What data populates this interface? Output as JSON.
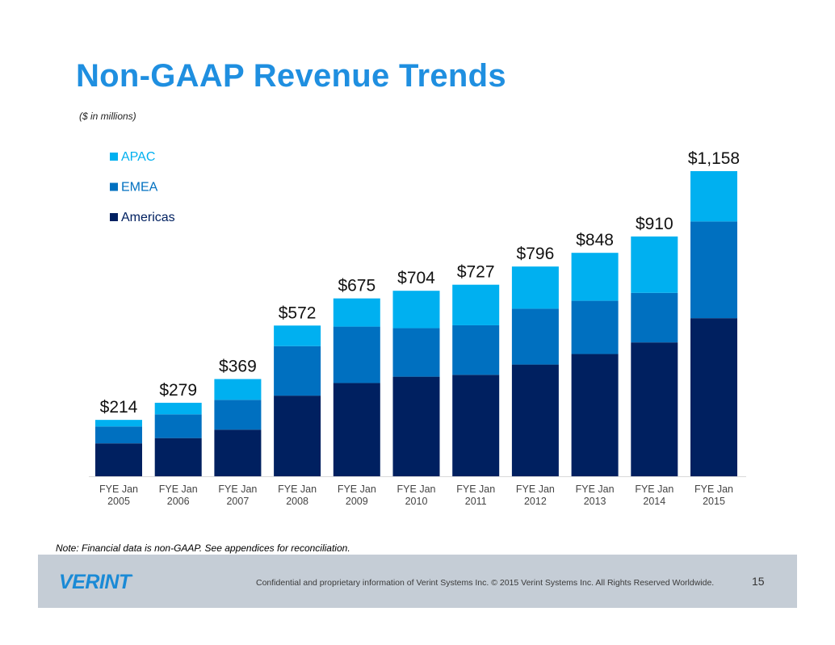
{
  "slide": {
    "title": "Non-GAAP Revenue Trends",
    "subtitle": "($ in millions)",
    "note": "Note: Financial data is non-GAAP.  See appendices for reconciliation.",
    "footer_text": "Confidential and proprietary information of Verint Systems Inc. © 2015 Verint Systems Inc. All Rights Reserved Worldwide.",
    "page_number": "15",
    "logo_text": "VERINT",
    "logo_mark": "."
  },
  "colors": {
    "title": "#1f8fe0",
    "logo": "#1a8ad6",
    "APAC": "#00b0f0",
    "EMEA": "#0070c0",
    "Americas": "#002060"
  },
  "chart_data": {
    "type": "bar",
    "stacked": true,
    "categories": [
      [
        "FYE Jan",
        "2005"
      ],
      [
        "FYE Jan",
        "2006"
      ],
      [
        "FYE Jan",
        "2007"
      ],
      [
        "FYE Jan",
        "2008"
      ],
      [
        "FYE Jan",
        "2009"
      ],
      [
        "FYE Jan",
        "2010"
      ],
      [
        "FYE Jan",
        "2011"
      ],
      [
        "FYE Jan",
        "2012"
      ],
      [
        "FYE Jan",
        "2013"
      ],
      [
        "FYE Jan",
        "2014"
      ],
      [
        "FYE Jan",
        "2015"
      ]
    ],
    "series": [
      {
        "name": "Americas",
        "values": [
          125,
          145,
          177,
          306,
          354,
          378,
          385,
          424,
          464,
          508,
          600
        ]
      },
      {
        "name": "EMEA",
        "values": [
          64,
          90,
          113,
          188,
          214,
          184,
          188,
          212,
          202,
          188,
          367
        ]
      },
      {
        "name": "APAC",
        "values": [
          25,
          44,
          79,
          78,
          107,
          142,
          154,
          160,
          182,
          214,
          191
        ]
      }
    ],
    "totals": [
      214,
      279,
      369,
      572,
      675,
      704,
      727,
      796,
      848,
      910,
      1158
    ],
    "total_labels": [
      "$214",
      "$279",
      "$369",
      "$572",
      "$675",
      "$704",
      "$727",
      "$796",
      "$848",
      "$910",
      "$1,158"
    ],
    "legend": [
      "APAC",
      "EMEA",
      "Americas"
    ],
    "legend_position": "top-left",
    "ylim": [
      0,
      1158
    ],
    "grid": false,
    "title": "",
    "xlabel": "",
    "ylabel": ""
  }
}
